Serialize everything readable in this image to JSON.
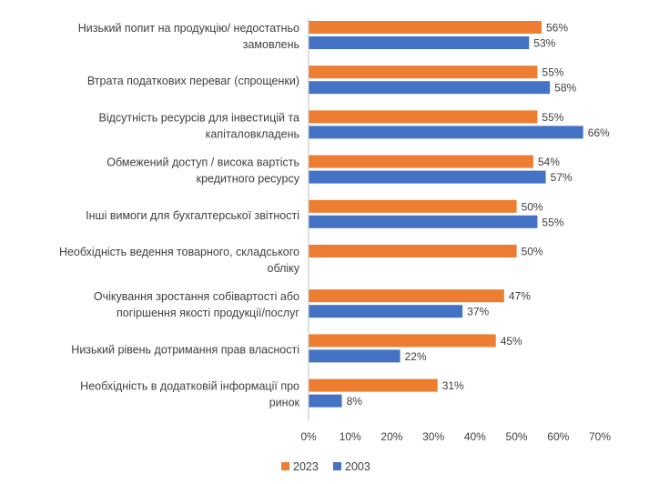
{
  "chart_data": {
    "type": "bar",
    "orientation": "horizontal",
    "categories": [
      [
        "Низький попит на продукцію/ недостатньо",
        "замовлень"
      ],
      [
        "Втрата податкових переваг (спрощенки)"
      ],
      [
        "Відсутність ресурсів для інвестицій та",
        "капіталовкладень"
      ],
      [
        "Обмежений доступ / висока вартість",
        "кредитного ресурсу"
      ],
      [
        "Інші вимоги для бухгалтерської звітності"
      ],
      [
        "Необхідність ведення товарного, складського",
        "обліку"
      ],
      [
        "Очікування зростання собівартості або",
        "погіршення якості продукції/послуг"
      ],
      [
        "Низький рівень дотримання прав власності"
      ],
      [
        "Необхідність в додатковій інформації про",
        "ринок"
      ]
    ],
    "series": [
      {
        "name": "2023",
        "color": "#ED7D31",
        "values": [
          56,
          55,
          55,
          54,
          50,
          50,
          47,
          45,
          31
        ]
      },
      {
        "name": "2003",
        "color": "#4472C4",
        "values": [
          53,
          58,
          66,
          57,
          55,
          null,
          37,
          22,
          8
        ]
      }
    ],
    "value_suffix": "%",
    "xlim": [
      0,
      70
    ],
    "xticks": [
      "0%",
      "10%",
      "20%",
      "30%",
      "40%",
      "50%",
      "60%",
      "70%"
    ],
    "grid": false,
    "legend_position": "bottom",
    "title": "",
    "xlabel": "",
    "ylabel": ""
  }
}
